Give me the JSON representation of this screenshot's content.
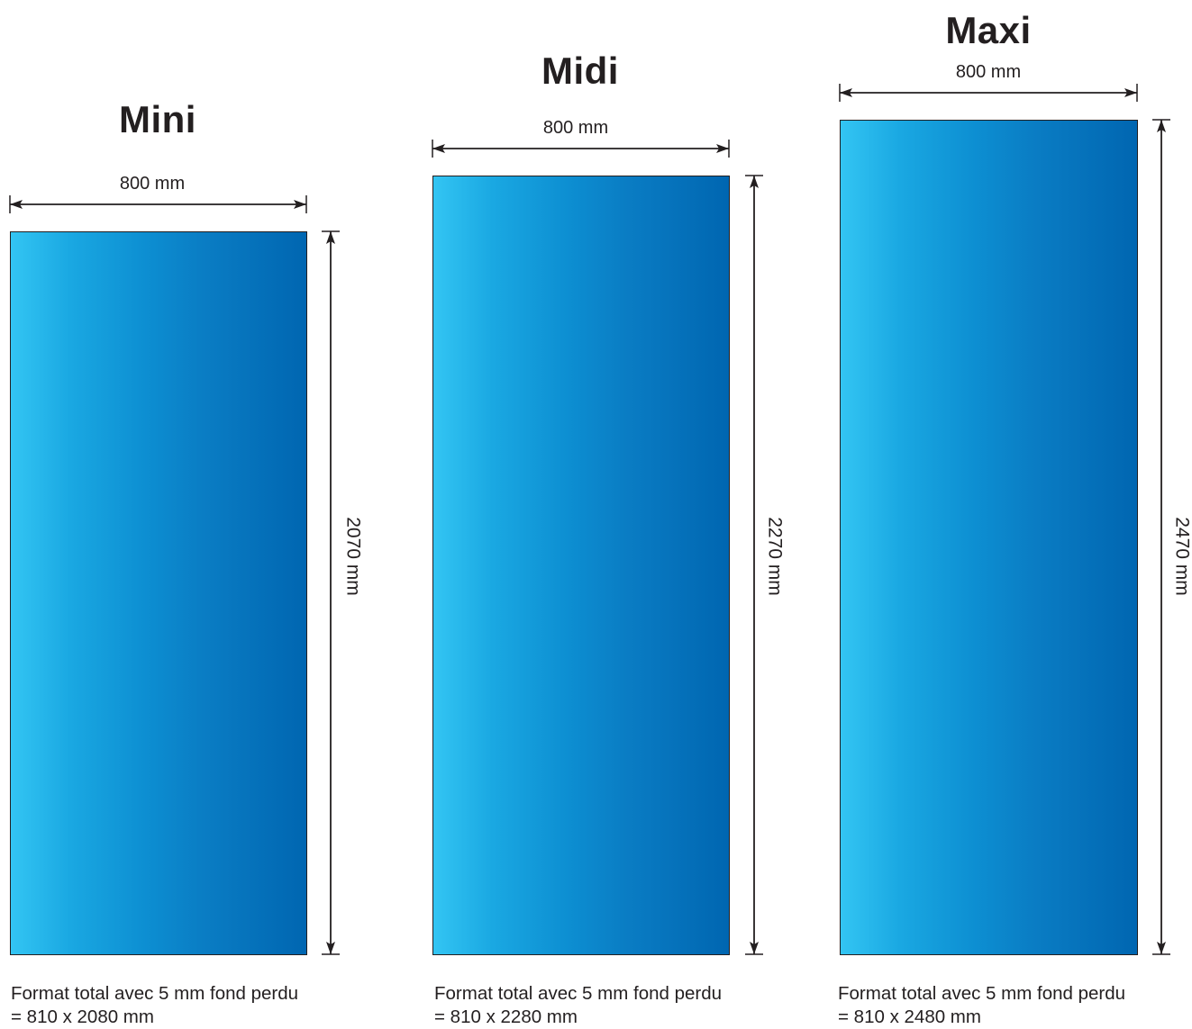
{
  "formats": [
    {
      "name": "Mini",
      "width_label": "800 mm",
      "height_label": "2070 mm",
      "note_line1": "Format total avec 5 mm fond perdu",
      "note_line2": "= 810 x 2080 mm"
    },
    {
      "name": "Midi",
      "width_label": "800 mm",
      "height_label": "2270 mm",
      "note_line1": "Format total avec 5 mm fond perdu",
      "note_line2": "= 810 x 2280 mm"
    },
    {
      "name": "Maxi",
      "width_label": "800 mm",
      "height_label": "2470 mm",
      "note_line1": "Format total avec 5 mm fond perdu",
      "note_line2": "= 810 x 2480 mm"
    }
  ],
  "colors": {
    "gradient_light": "#33c5f3",
    "gradient_dark": "#0066b1",
    "line": "#231f20"
  }
}
